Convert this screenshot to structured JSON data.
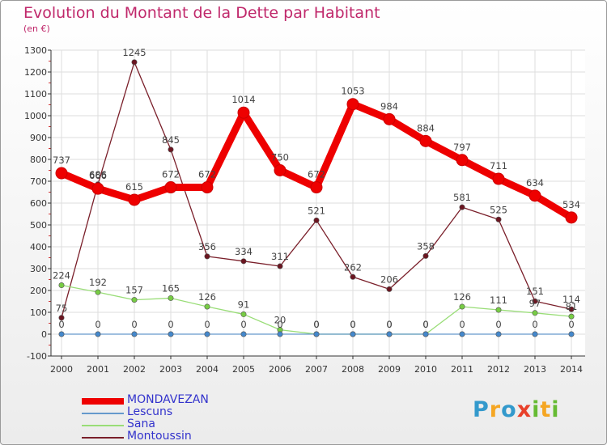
{
  "title": "Evolution du Montant de la Dette par Habitant",
  "unit": "(en €)",
  "colors": {
    "title": "#c0286b",
    "legend_text": "#3333cc",
    "axis": "#333333",
    "grid": "#dddddd"
  },
  "chart_data": {
    "type": "line",
    "title": "Evolution du Montant de la Dette par Habitant",
    "ylabel": "(en €)",
    "xlabel": "",
    "x": [
      "2000",
      "2001",
      "2002",
      "2003",
      "2004",
      "2005",
      "2006",
      "2007",
      "2008",
      "2009",
      "2010",
      "2011",
      "2012",
      "2013",
      "2014"
    ],
    "ylim": [
      -100,
      1300
    ],
    "yticks": [
      -100,
      0,
      100,
      200,
      300,
      400,
      500,
      600,
      700,
      800,
      900,
      1000,
      1100,
      1200,
      1300
    ],
    "grid": true,
    "legend_position": "bottom-left",
    "series": [
      {
        "name": "Montoussin",
        "color": "#7a1f2a",
        "marker": "#6b1520",
        "values": [
          75,
          686,
          1245,
          845,
          356,
          334,
          311,
          521,
          262,
          206,
          358,
          581,
          525,
          151,
          114
        ]
      },
      {
        "name": "Sana",
        "color": "#99dd77",
        "marker": "#77cc44",
        "values": [
          224,
          192,
          157,
          165,
          126,
          91,
          20,
          0,
          0,
          0,
          0,
          126,
          111,
          97,
          81
        ]
      },
      {
        "name": "Lescuns",
        "color": "#6699cc",
        "marker": "#4488cc",
        "values": [
          0,
          0,
          0,
          0,
          0,
          0,
          0,
          0,
          0,
          0,
          0,
          0,
          0,
          0,
          0
        ]
      },
      {
        "name": "MONDAVEZAN",
        "color": "#ee0000",
        "marker": "#ee0000",
        "values": [
          737,
          666,
          615,
          672,
          672,
          1014,
          750,
          672,
          1053,
          984,
          884,
          797,
          711,
          634,
          534
        ]
      }
    ]
  },
  "legend": [
    {
      "name": "MONDAVEZAN",
      "color": "#ee0000"
    },
    {
      "name": "Lescuns",
      "color": "#6699cc"
    },
    {
      "name": "Sana",
      "color": "#99dd77"
    },
    {
      "name": "Montoussin",
      "color": "#7a1f2a"
    }
  ],
  "logo": {
    "letters": [
      "P",
      "r",
      "o",
      "x",
      "i",
      "t",
      "i"
    ],
    "colors": [
      "#3399cc",
      "#f5a623",
      "#3399cc",
      "#e8402a",
      "#66bb33",
      "#f5a623",
      "#66bb33"
    ]
  }
}
